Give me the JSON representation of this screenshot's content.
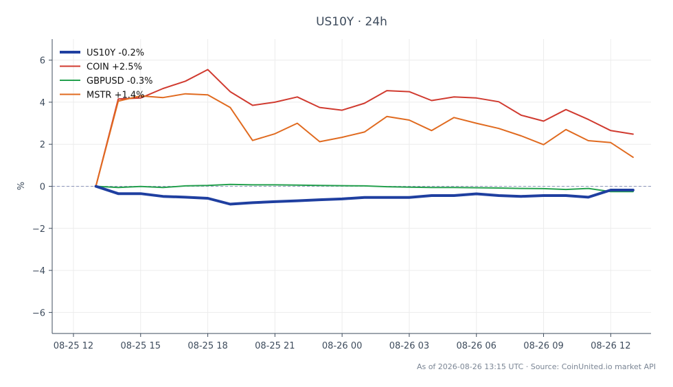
{
  "chart_data": {
    "type": "line",
    "title": "US10Y · 24h",
    "xlabel": "",
    "ylabel": "%",
    "ylim": [
      -7,
      7
    ],
    "yticks": [
      -6,
      -4,
      -2,
      0,
      2,
      4,
      6
    ],
    "ytick_labels": [
      "−6",
      "−4",
      "−2",
      "0",
      "2",
      "4",
      "6"
    ],
    "x_ticks": [
      "08-25 12",
      "08-25 15",
      "08-25 18",
      "08-25 21",
      "08-26 00",
      "08-26 03",
      "08-26 06",
      "08-26 09",
      "08-26 12"
    ],
    "x_tick_hours": [
      0,
      3,
      6,
      9,
      12,
      15,
      18,
      21,
      24
    ],
    "xlim_hours": [
      -0.95,
      25.8
    ],
    "x_hours": [
      1,
      2,
      3,
      4,
      5,
      6,
      7,
      8,
      9,
      10,
      11,
      12,
      13,
      14,
      15,
      16,
      17,
      18,
      19,
      20,
      21,
      22,
      23,
      24,
      25
    ],
    "reference_line": 0,
    "grid": true,
    "legend_position": "top-left",
    "series": [
      {
        "name": "US10Y -0.2%",
        "color": "#1f3fa0",
        "width": 4,
        "values": [
          0,
          -0.35,
          -0.35,
          -0.48,
          -0.52,
          -0.57,
          -0.85,
          -0.78,
          -0.73,
          -0.69,
          -0.64,
          -0.6,
          -0.53,
          -0.53,
          -0.53,
          -0.44,
          -0.44,
          -0.36,
          -0.44,
          -0.48,
          -0.44,
          -0.44,
          -0.52,
          -0.18,
          -0.18
        ]
      },
      {
        "name": "COIN +2.5%",
        "color": "#d03a2f",
        "width": 2,
        "values": [
          0,
          4.15,
          4.2,
          4.65,
          5.0,
          5.55,
          4.5,
          3.85,
          4.0,
          4.25,
          3.75,
          3.62,
          3.95,
          4.55,
          4.5,
          4.08,
          4.25,
          4.2,
          4.02,
          3.38,
          3.1,
          3.65,
          3.18,
          2.65,
          2.48
        ]
      },
      {
        "name": "GBPUSD -0.3%",
        "color": "#23a04d",
        "width": 2,
        "values": [
          0,
          -0.06,
          -0.01,
          -0.06,
          0.02,
          0.04,
          0.09,
          0.07,
          0.07,
          0.06,
          0.04,
          0.03,
          0.02,
          -0.02,
          -0.04,
          -0.06,
          -0.06,
          -0.07,
          -0.08,
          -0.1,
          -0.11,
          -0.15,
          -0.1,
          -0.25,
          -0.25
        ]
      },
      {
        "name": "MSTR +1.4%",
        "color": "#e06a1f",
        "width": 2,
        "values": [
          0,
          4.05,
          4.3,
          4.22,
          4.4,
          4.35,
          3.75,
          2.18,
          2.5,
          3.0,
          2.12,
          2.33,
          2.58,
          3.32,
          3.15,
          2.65,
          3.27,
          3.0,
          2.75,
          2.4,
          1.98,
          2.7,
          2.17,
          2.08,
          1.38
        ]
      }
    ]
  },
  "footer": "As of 2026-08-26 13:15 UTC · Source: CoinUnited.io market API"
}
